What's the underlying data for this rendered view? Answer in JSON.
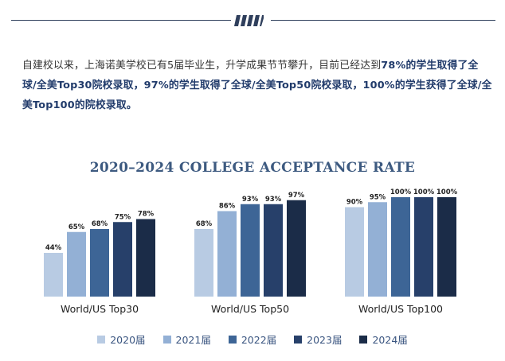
{
  "intro": {
    "segments": [
      {
        "text": "自建校以来，上海诺美学校已有5届毕业生，升学成果节节攀升，目前已经达到",
        "bold": false
      },
      {
        "text": "78%的学生取得了全球/全美Top30院校录取，97%的学生取得了全球/全美Top50院校录取，100%的学生获得了全球/全美Top100的院校录取。",
        "bold": true
      }
    ]
  },
  "chart_data": {
    "type": "bar",
    "title": "2020–2024 COLLEGE ACCEPTANCE RATE",
    "categories": [
      "World/US Top30",
      "World/US Top50",
      "World/US Top100"
    ],
    "series": [
      {
        "name": "2020届",
        "color": "#b8cbe3",
        "values": [
          44,
          68,
          90
        ]
      },
      {
        "name": "2021届",
        "color": "#93b0d5",
        "values": [
          65,
          86,
          95
        ]
      },
      {
        "name": "2022届",
        "color": "#3d6596",
        "values": [
          68,
          93,
          100
        ]
      },
      {
        "name": "2023届",
        "color": "#27406a",
        "values": [
          75,
          93,
          100
        ]
      },
      {
        "name": "2024届",
        "color": "#1b2c48",
        "values": [
          78,
          97,
          100
        ]
      }
    ],
    "value_suffix": "%",
    "ylim": [
      0,
      100
    ],
    "grid": false,
    "legend_position": "bottom"
  }
}
